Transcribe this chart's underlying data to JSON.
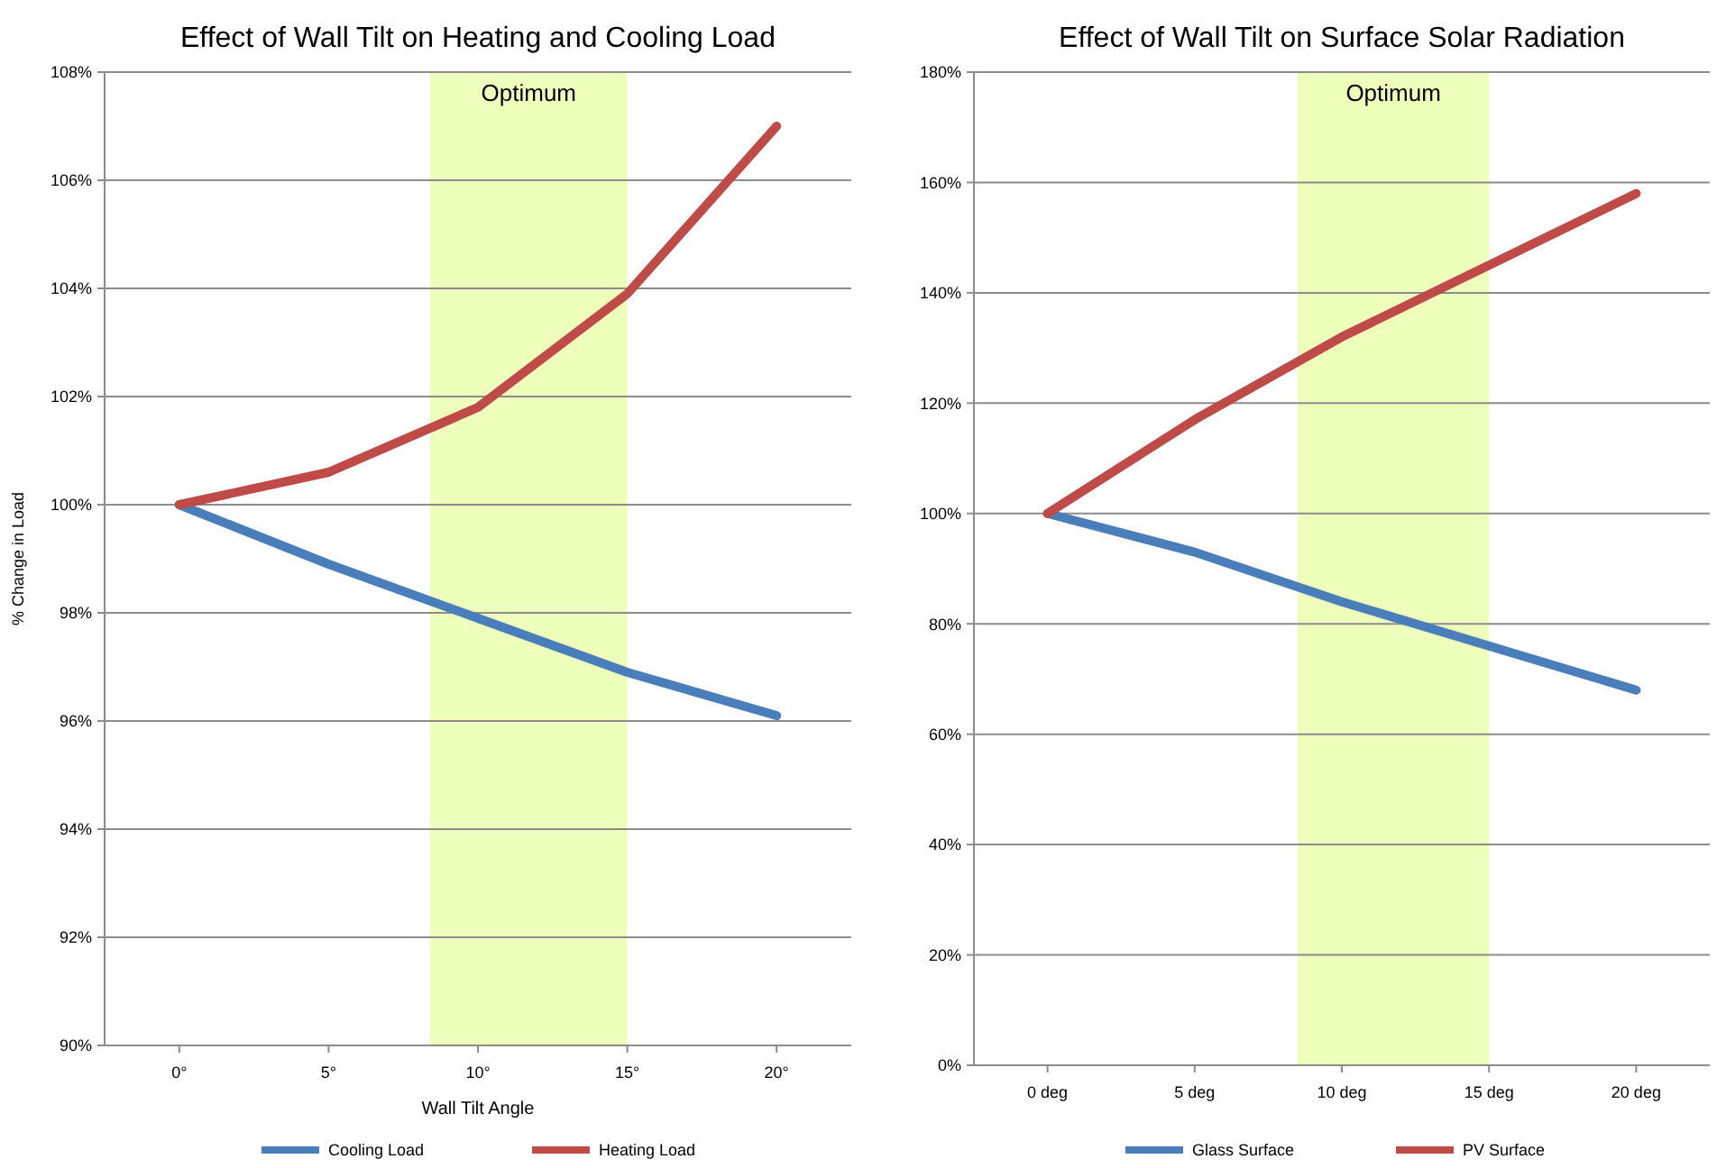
{
  "chart_data": [
    {
      "type": "line",
      "title": "Effect of Wall Tilt on Heating and Cooling Load",
      "xlabel": "Wall Tilt Angle",
      "ylabel": "% Change in Load",
      "x": [
        0,
        5,
        10,
        15,
        20
      ],
      "xlim": [
        -2.5,
        22.5
      ],
      "xticks": [
        {
          "value": 0,
          "label": "0°"
        },
        {
          "value": 5,
          "label": "5°"
        },
        {
          "value": 10,
          "label": "10°"
        },
        {
          "value": 15,
          "label": "15°"
        },
        {
          "value": 20,
          "label": "20°"
        }
      ],
      "ylim": [
        90,
        108
      ],
      "yticks": [
        {
          "value": 90,
          "label": "90%"
        },
        {
          "value": 92,
          "label": "92%"
        },
        {
          "value": 94,
          "label": "94%"
        },
        {
          "value": 96,
          "label": "96%"
        },
        {
          "value": 98,
          "label": "98%"
        },
        {
          "value": 100,
          "label": "100%"
        },
        {
          "value": 102,
          "label": "102%"
        },
        {
          "value": 104,
          "label": "104%"
        },
        {
          "value": 106,
          "label": "106%"
        },
        {
          "value": 108,
          "label": "108%"
        }
      ],
      "series": [
        {
          "name": "Cooling Load",
          "color": "#4a7ebb",
          "values": [
            100,
            98.9,
            97.9,
            96.9,
            96.1
          ]
        },
        {
          "name": "Heating Load",
          "color": "#be4b48",
          "values": [
            100,
            100.6,
            101.8,
            103.9,
            107
          ]
        }
      ],
      "bands": [
        {
          "axis": "x",
          "from": 8.4,
          "to": 15,
          "label": "Optimum",
          "color": "#eeffbb"
        }
      ],
      "grid": "y",
      "legend": "bottom",
      "marker": "none"
    },
    {
      "type": "line",
      "title": "Effect of Wall Tilt on Surface Solar Radiation",
      "x": [
        0,
        5,
        10,
        15,
        20
      ],
      "xlim": [
        -2.5,
        22.5
      ],
      "xticks": [
        {
          "value": 0,
          "label": "0 deg"
        },
        {
          "value": 5,
          "label": "5 deg"
        },
        {
          "value": 10,
          "label": "10 deg"
        },
        {
          "value": 15,
          "label": "15 deg"
        },
        {
          "value": 20,
          "label": "20 deg"
        }
      ],
      "ylim": [
        0,
        180
      ],
      "yticks": [
        {
          "value": 0,
          "label": "0%"
        },
        {
          "value": 20,
          "label": "20%"
        },
        {
          "value": 40,
          "label": "40%"
        },
        {
          "value": 60,
          "label": "60%"
        },
        {
          "value": 80,
          "label": "80%"
        },
        {
          "value": 100,
          "label": "100%"
        },
        {
          "value": 120,
          "label": "120%"
        },
        {
          "value": 140,
          "label": "140%"
        },
        {
          "value": 160,
          "label": "160%"
        },
        {
          "value": 180,
          "label": "180%"
        }
      ],
      "series": [
        {
          "name": "Glass Surface",
          "color": "#4a7ebb",
          "values": [
            100,
            93,
            84,
            76,
            68
          ]
        },
        {
          "name": "PV Surface",
          "color": "#be4b48",
          "values": [
            100,
            117,
            132,
            145,
            158
          ]
        }
      ],
      "bands": [
        {
          "axis": "x",
          "from": 8.5,
          "to": 15,
          "label": "Optimum",
          "color": "#eeffbb"
        }
      ],
      "grid": "y",
      "legend": "bottom",
      "marker": "none"
    }
  ]
}
